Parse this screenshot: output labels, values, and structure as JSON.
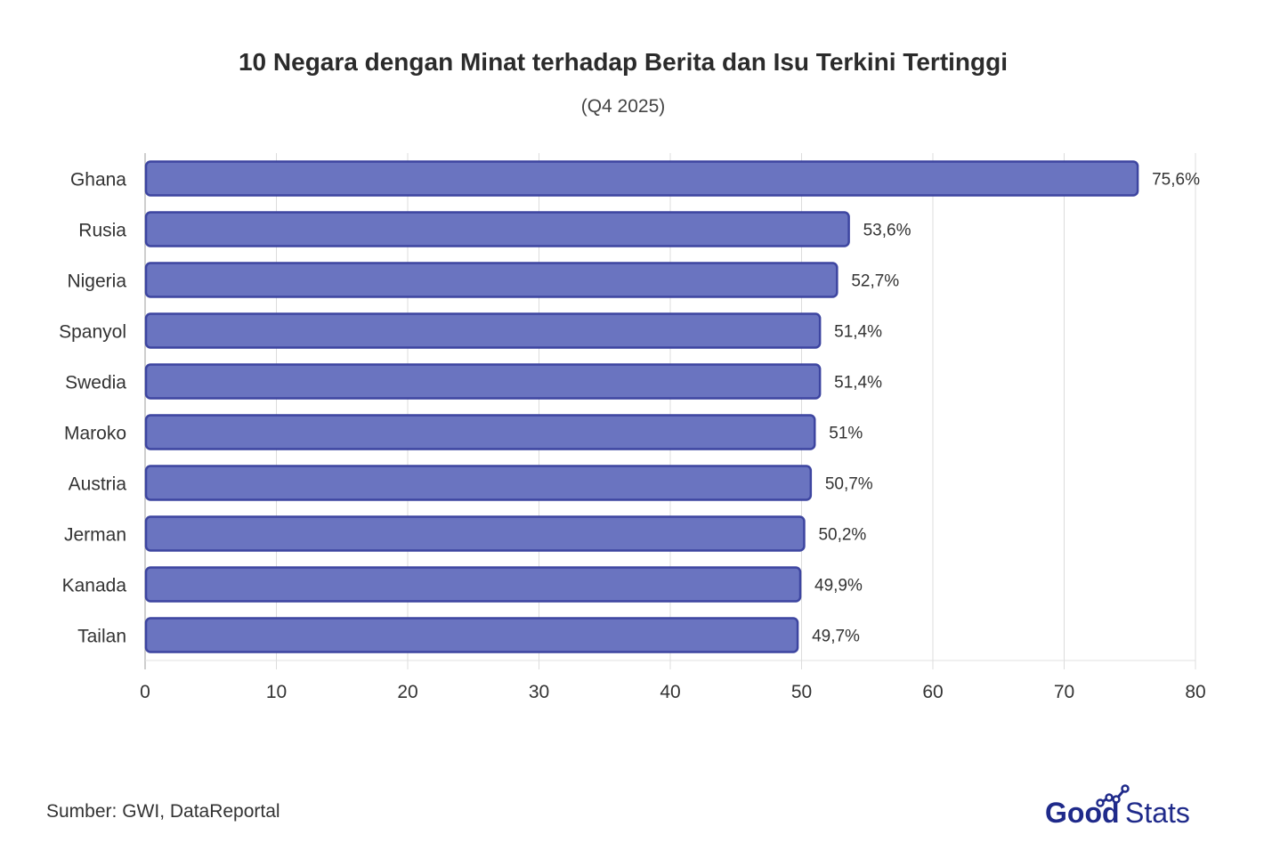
{
  "chart_data": {
    "type": "bar",
    "orientation": "horizontal",
    "title": "10 Negara dengan Minat terhadap Berita dan Isu Terkini Tertinggi",
    "subtitle": "(Q4 2025)",
    "categories": [
      "Ghana",
      "Rusia",
      "Nigeria",
      "Spanyol",
      "Swedia",
      "Maroko",
      "Austria",
      "Jerman",
      "Kanada",
      "Tailan"
    ],
    "values": [
      75.6,
      53.6,
      52.7,
      51.4,
      51.4,
      51,
      50.7,
      50.2,
      49.9,
      49.7
    ],
    "value_labels": [
      "75,6%",
      "53,6%",
      "52,7%",
      "51,4%",
      "51,4%",
      "51%",
      "50,7%",
      "50,2%",
      "49,9%",
      "49,7%"
    ],
    "xlim": [
      0,
      80
    ],
    "xticks": [
      0,
      10,
      20,
      30,
      40,
      50,
      60,
      70,
      80
    ],
    "xlabel": "",
    "ylabel": "",
    "grid": "vertical",
    "bar_color": "#6a74c0",
    "bar_border_color": "#3d45a0"
  },
  "footer": {
    "source": "Sumber: GWI, DataReportal",
    "logo_text_good": "Good",
    "logo_text_stats": "Stats",
    "logo_color": "#1f2a8a"
  }
}
